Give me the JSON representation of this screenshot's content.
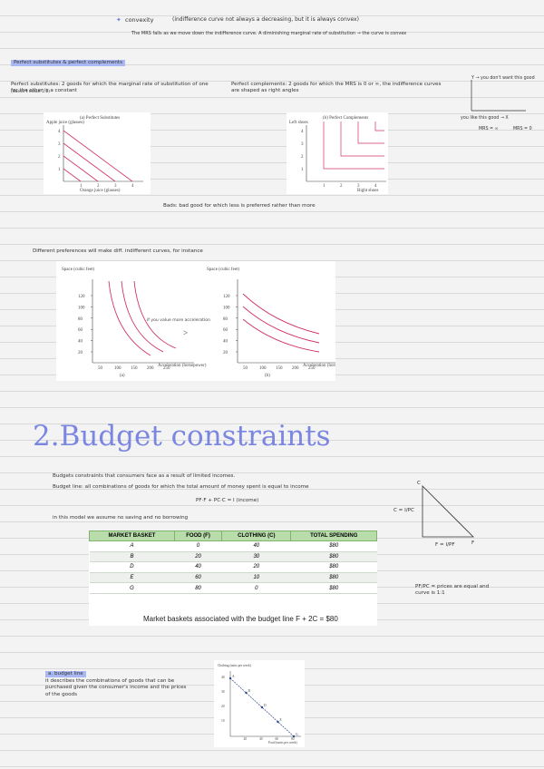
{
  "convexity": {
    "heading": "convexity",
    "note": "(indifference curve not always a decreasing, but it is always convex)",
    "detail": "The MRS falls as we move down the indifference curve. A diminishing marginal rate of substitution → the curve is convex"
  },
  "perfect": {
    "heading": "Perfect substitutes & perfect complements",
    "substitutes": "Perfect substitutes: 2 goods for which the marginal rate of substitution of one for the other is a constant",
    "substitutes_note": "(doesn't mean 1:1)",
    "complements": "Perfect complements: 2 goods for which the MRS is 0 or ∞, the indifference curves are shaped as right angles",
    "sketch": {
      "y": "Y → you don't want this good",
      "x": "you like this good → X",
      "mrs_inf": "MRS = ∞",
      "mrs_zero": "MRS = 0"
    },
    "figure_a": {
      "title": "(a) Perfect Substitutes",
      "y_label": "Apple juice (glasses)",
      "x_label": "Orange juice (glasses)",
      "ticks": [
        "1",
        "2",
        "3",
        "4"
      ]
    },
    "figure_b": {
      "title": "(b) Perfect Complements",
      "y_label": "Left shoes",
      "x_label": "Right shoes",
      "ticks": [
        "1",
        "2",
        "3",
        "4"
      ]
    },
    "bads": "Bads: bad good for which less is preferred rather than more"
  },
  "preferences": {
    "intro": "Different preferences will make diff. indifferent curves, for instance",
    "note": "if you value more acceleration",
    "compare": ">",
    "y_label": "Space (cubic feet)",
    "x_label": "Acceleration (horsepower)",
    "yticks": [
      "20",
      "40",
      "60",
      "80",
      "100",
      "120"
    ],
    "xticks": [
      "50",
      "100",
      "150",
      "200",
      "250"
    ],
    "panels": [
      "(a)",
      "(b)"
    ]
  },
  "budget": {
    "title": "2.Budget constraints",
    "intro": "Budgets constraints that consumers face as a result of limited incomes.",
    "definition": "Budget line: all combinations of goods for which the total amount of money spent is equal to income",
    "equation": "PF·F + PC·C = I (income)",
    "assumption": "in this model we assume no saving and no borrowing",
    "table": {
      "headers": [
        "MARKET BASKET",
        "FOOD (F)",
        "CLOTHING (C)",
        "TOTAL SPENDING"
      ],
      "rows": [
        [
          "A",
          "0",
          "40",
          "$80"
        ],
        [
          "B",
          "20",
          "30",
          "$80"
        ],
        [
          "D",
          "40",
          "20",
          "$80"
        ],
        [
          "E",
          "60",
          "10",
          "$80"
        ],
        [
          "G",
          "80",
          "0",
          "$80"
        ]
      ]
    },
    "caption": "Market baskets associated with the budget line F + 2C = $80",
    "triangle": {
      "c": "C",
      "c_eq": "C = I/PC",
      "f_eq": "F = I/PF",
      "f": "F"
    },
    "slope_note": "PF/PC = prices are equal and curve is 1:1",
    "budget_line": {
      "heading": "a. budget line",
      "text": "it describes the combinations of goods that can be purchased given the consumer's income and the prices of the goods",
      "figure": {
        "y_label": "Clothing (units per week)",
        "x_label": "Food (units per week)",
        "yticks": [
          "10",
          "20",
          "30",
          "40"
        ],
        "xticks": [
          "20",
          "40",
          "60",
          "80"
        ]
      }
    }
  }
}
